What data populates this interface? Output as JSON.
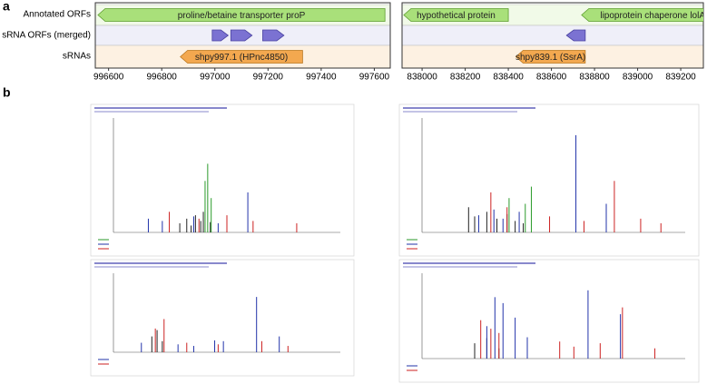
{
  "panel_a": {
    "label": "a",
    "track_labels": [
      "Annotated ORFs",
      "sRNA ORFs (merged)",
      "sRNAs"
    ],
    "views": [
      {
        "xlim": [
          996550,
          997660
        ],
        "xticks": [
          996600,
          996800,
          997000,
          997200,
          997400,
          997600
        ],
        "annotated": [
          {
            "label": "proline/betaine transporter proP",
            "start": 996560,
            "end": 997640,
            "direction": "left"
          }
        ],
        "srna_orfs": [
          {
            "start": 996990,
            "end": 997050,
            "direction": "right"
          },
          {
            "start": 997060,
            "end": 997140,
            "direction": "right"
          },
          {
            "start": 997180,
            "end": 997260,
            "direction": "right"
          }
        ],
        "srnas": [
          {
            "label": "shpy997.1 (HPnc4850)",
            "start": 996870,
            "end": 997330,
            "direction": "left"
          }
        ]
      },
      {
        "xlim": [
          837907,
          839305
        ],
        "xticks": [
          838000,
          838200,
          838400,
          838600,
          838800,
          839000,
          839200
        ],
        "annotated": [
          {
            "label": "hypothetical protein",
            "start": 837915,
            "end": 838400,
            "direction": "left"
          },
          {
            "label": "lipoprotein chaperone lolA",
            "start": 838740,
            "end": 839400,
            "direction": "left"
          }
        ],
        "srna_orfs": [
          {
            "start": 838670,
            "end": 838757,
            "direction": "left"
          }
        ],
        "srnas": [
          {
            "label": "shpy839.1 (SsrA)",
            "start": 838435,
            "end": 838757,
            "direction": "left"
          }
        ]
      }
    ]
  },
  "panel_b": {
    "label": "b",
    "chart_data": [
      {
        "type": "spectrum",
        "xlim": [
          100,
          1400
        ],
        "ylim": [
          0,
          100
        ],
        "series": [
          {
            "color": "#222222",
            "x": [
              480,
              520,
              545,
              570,
              600,
              615,
              655
            ],
            "values": [
              8,
              12,
              6,
              15,
              10,
              18,
              9
            ]
          },
          {
            "color": "#2a9a2a",
            "x": [
              625,
              640,
              660
            ],
            "values": [
              45,
              60,
              30
            ]
          },
          {
            "color": "#2233aa",
            "x": [
              300,
              380,
              560,
              700,
              870
            ],
            "values": [
              12,
              10,
              14,
              8,
              35
            ]
          },
          {
            "color": "#cc2222",
            "x": [
              420,
              590,
              750,
              900,
              1150
            ],
            "values": [
              18,
              12,
              15,
              10,
              8
            ]
          }
        ]
      },
      {
        "type": "spectrum",
        "xlim": [
          100,
          1400
        ],
        "ylim": [
          0,
          100
        ],
        "series": [
          {
            "color": "#222222",
            "x": [
              330,
              360,
              420,
              470,
              520,
              560,
              600
            ],
            "values": [
              22,
              14,
              18,
              12,
              16,
              10,
              8
            ]
          },
          {
            "color": "#2a9a2a",
            "x": [
              530,
              610,
              640
            ],
            "values": [
              30,
              25,
              40
            ]
          },
          {
            "color": "#2233aa",
            "x": [
              380,
              455,
              500,
              580,
              860,
              1010
            ],
            "values": [
              15,
              20,
              12,
              18,
              85,
              25
            ]
          },
          {
            "color": "#cc2222",
            "x": [
              440,
              520,
              730,
              900,
              1050,
              1180,
              1280
            ],
            "values": [
              35,
              22,
              14,
              10,
              45,
              12,
              8
            ]
          }
        ]
      },
      {
        "type": "spectrum",
        "xlim": [
          100,
          1400
        ],
        "ylim": [
          0,
          100
        ],
        "series": [
          {
            "color": "#222222",
            "x": [
              320,
              350,
              380
            ],
            "values": [
              20,
              28,
              14
            ]
          },
          {
            "color": "#2233aa",
            "x": [
              260,
              470,
              560,
              680,
              730,
              920,
              1050
            ],
            "values": [
              12,
              10,
              8,
              15,
              14,
              70,
              20
            ]
          },
          {
            "color": "#cc2222",
            "x": [
              340,
              390,
              520,
              700,
              950,
              1100
            ],
            "values": [
              30,
              42,
              12,
              10,
              14,
              8
            ]
          }
        ]
      },
      {
        "type": "spectrum",
        "xlim": [
          100,
          1400
        ],
        "ylim": [
          0,
          100
        ],
        "series": [
          {
            "color": "#222222",
            "x": [
              360,
              420,
              480
            ],
            "values": [
              18,
              24,
              12
            ]
          },
          {
            "color": "#2233aa",
            "x": [
              420,
              460,
              500,
              560,
              620,
              920,
              1080
            ],
            "values": [
              38,
              72,
              65,
              48,
              25,
              80,
              52
            ]
          },
          {
            "color": "#cc2222",
            "x": [
              390,
              440,
              480,
              780,
              850,
              980,
              1090,
              1250
            ],
            "values": [
              45,
              35,
              30,
              20,
              14,
              18,
              60,
              12
            ]
          }
        ]
      }
    ]
  }
}
